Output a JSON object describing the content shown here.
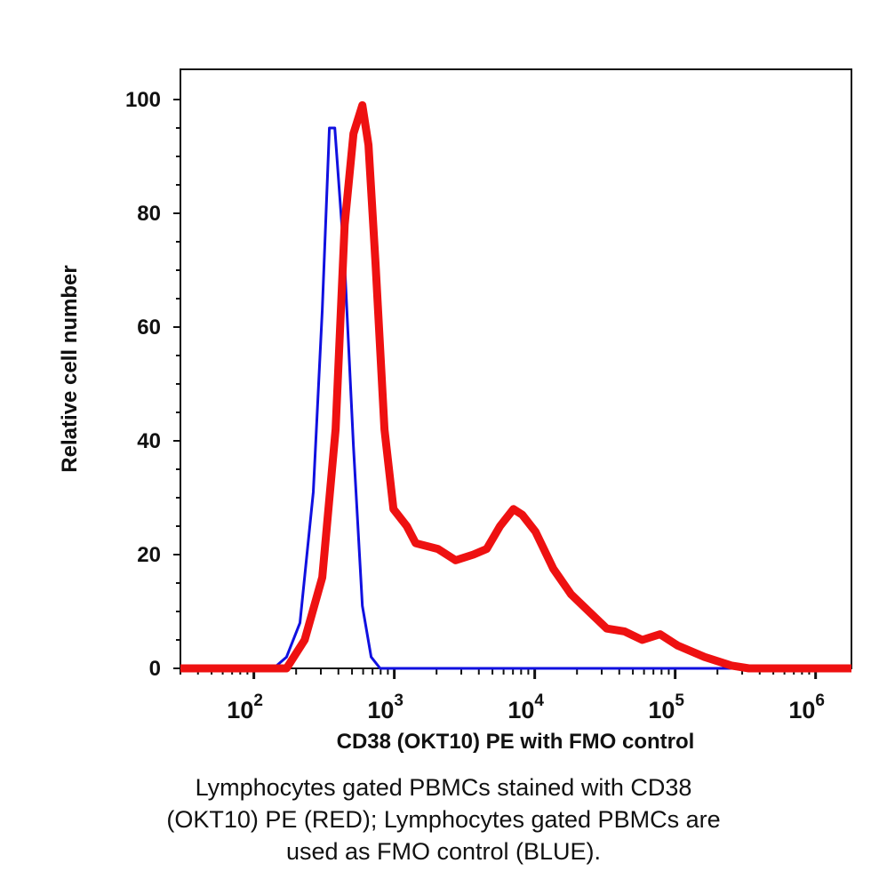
{
  "chart_data": {
    "type": "line",
    "title": "",
    "xlabel": "CD38 (OKT10) PE with FMO control",
    "ylabel": "Relative cell number",
    "xscale": "log",
    "xlim": [
      30,
      1800000
    ],
    "ylim": [
      0,
      100
    ],
    "x_ticks": [
      {
        "base": "10",
        "exp": "2",
        "value": 100
      },
      {
        "base": "10",
        "exp": "3",
        "value": 1000
      },
      {
        "base": "10",
        "exp": "4",
        "value": 10000
      },
      {
        "base": "10",
        "exp": "5",
        "value": 100000
      },
      {
        "base": "10",
        "exp": "6",
        "value": 1000000
      }
    ],
    "y_ticks": [
      "0",
      "20",
      "40",
      "60",
      "80",
      "100"
    ],
    "grid": false,
    "series": [
      {
        "color": "#1010e0",
        "x": [
          30,
          138,
          171,
          213,
          265,
          307,
          345,
          377,
          443,
          512,
          592,
          684,
          793,
          1800000
        ],
        "y": [
          0,
          0,
          2,
          8,
          31,
          63,
          95,
          95,
          71,
          39,
          11,
          2,
          0,
          0
        ]
      },
      {
        "color": "#ee1111",
        "x": [
          30,
          171,
          230,
          307,
          382,
          443,
          512,
          592,
          655,
          736,
          851,
          986,
          1227,
          1420,
          2042,
          2735,
          3657,
          4550,
          5660,
          7050,
          8150,
          10140,
          13580,
          18160,
          24300,
          32600,
          43600,
          58300,
          78000,
          104400,
          161800,
          250600,
          335000,
          1800000
        ],
        "y": [
          0,
          0,
          5,
          16,
          42,
          78,
          94,
          99,
          92,
          71,
          42,
          28,
          25,
          22,
          21,
          19,
          20,
          21,
          25,
          28,
          27,
          24,
          17.5,
          13,
          10,
          7,
          6.5,
          5,
          6,
          4,
          2,
          0.5,
          0,
          0
        ]
      }
    ]
  },
  "caption": {
    "line1": "Lymphocytes gated PBMCs stained with CD38",
    "line2": "(OKT10) PE (RED); Lymphocytes gated PBMCs are",
    "line3": "used as FMO control (BLUE)."
  }
}
